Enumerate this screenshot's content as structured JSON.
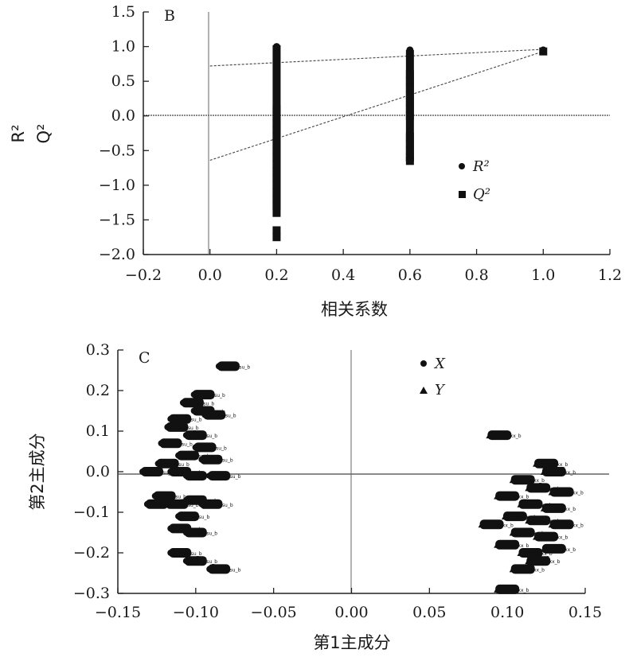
{
  "chart_data": [
    {
      "type": "scatter",
      "panel_label": "B",
      "xlabel": "相关系数",
      "ylabel_parts": [
        "R²",
        "Q²"
      ],
      "xlim": [
        -0.2,
        1.2
      ],
      "ylim": [
        -2.0,
        1.5
      ],
      "x_ticks": [
        "−0.2",
        "0.0",
        "0.2",
        "0.4",
        "0.6",
        "0.8",
        "1.0",
        "1.2"
      ],
      "y_ticks": [
        "1.5",
        "1.0",
        "0.5",
        "0.0",
        "−0.5",
        "−1.0",
        "−1.5",
        "−2.0"
      ],
      "legend_position": "right-middle",
      "series": [
        {
          "name": "R²",
          "marker": "circle",
          "points": [
            [
              0.2,
              1.0
            ],
            [
              0.2,
              0.9
            ],
            [
              0.2,
              0.8
            ],
            [
              0.2,
              0.7
            ],
            [
              0.2,
              0.6
            ],
            [
              0.2,
              0.5
            ],
            [
              0.2,
              0.4
            ],
            [
              0.2,
              0.3
            ],
            [
              0.2,
              0.2
            ],
            [
              0.6,
              0.95
            ],
            [
              0.6,
              0.9
            ],
            [
              0.6,
              0.85
            ],
            [
              0.6,
              0.8
            ],
            [
              0.6,
              0.75
            ],
            [
              0.6,
              0.7
            ],
            [
              1.0,
              0.95
            ]
          ]
        },
        {
          "name": "Q²",
          "marker": "square",
          "points": [
            [
              0.2,
              0.1
            ],
            [
              0.2,
              0.0
            ],
            [
              0.2,
              -0.1
            ],
            [
              0.2,
              -0.2
            ],
            [
              0.2,
              -0.3
            ],
            [
              0.2,
              -0.4
            ],
            [
              0.2,
              -0.5
            ],
            [
              0.2,
              -0.6
            ],
            [
              0.2,
              -0.7
            ],
            [
              0.2,
              -0.8
            ],
            [
              0.2,
              -0.9
            ],
            [
              0.2,
              -1.0
            ],
            [
              0.2,
              -1.1
            ],
            [
              0.2,
              -1.2
            ],
            [
              0.2,
              -1.3
            ],
            [
              0.2,
              -1.4
            ],
            [
              0.2,
              -1.65
            ],
            [
              0.2,
              -1.75
            ],
            [
              0.6,
              0.6
            ],
            [
              0.6,
              0.5
            ],
            [
              0.6,
              0.4
            ],
            [
              0.6,
              0.3
            ],
            [
              0.6,
              0.2
            ],
            [
              0.6,
              0.1
            ],
            [
              0.6,
              0.0
            ],
            [
              0.6,
              -0.3
            ],
            [
              0.6,
              -0.4
            ],
            [
              0.6,
              -0.5
            ],
            [
              0.6,
              -0.6
            ],
            [
              0.6,
              -0.65
            ],
            [
              1.0,
              0.93
            ]
          ]
        }
      ],
      "regression_lines": [
        {
          "series": "R²",
          "x": [
            0,
            1.0
          ],
          "y": [
            0.72,
            0.96
          ]
        },
        {
          "series": "Q²",
          "x": [
            0,
            1.0
          ],
          "y": [
            -0.64,
            0.93
          ]
        }
      ]
    },
    {
      "type": "scatter",
      "panel_label": "C",
      "xlabel": "第1主成分",
      "ylabel": "第2主成分",
      "xlim": [
        -0.15,
        0.15
      ],
      "ylim": [
        -0.3,
        0.3
      ],
      "x_ticks": [
        "−0.15",
        "−0.10",
        "−0.05",
        "0.00",
        "0.05",
        "0.10",
        "0.15"
      ],
      "y_ticks": [
        "0.3",
        "0.2",
        "0.1",
        "0.0",
        "−0.1",
        "−0.2",
        "−0.3"
      ],
      "legend_position": "top-right",
      "series": [
        {
          "name": "X",
          "marker": "circle",
          "label": "Ruusu_b",
          "points": [
            [
              -0.079,
              0.26
            ],
            [
              -0.095,
              0.19
            ],
            [
              -0.102,
              0.17
            ],
            [
              -0.095,
              0.15
            ],
            [
              -0.11,
              0.13
            ],
            [
              -0.088,
              0.14
            ],
            [
              -0.112,
              0.11
            ],
            [
              -0.1,
              0.09
            ],
            [
              -0.116,
              0.07
            ],
            [
              -0.094,
              0.06
            ],
            [
              -0.105,
              0.04
            ],
            [
              -0.09,
              0.03
            ],
            [
              -0.118,
              0.02
            ],
            [
              -0.128,
              0.0
            ],
            [
              -0.11,
              0.0
            ],
            [
              -0.1,
              -0.01
            ],
            [
              -0.085,
              -0.01
            ],
            [
              -0.12,
              -0.06
            ],
            [
              -0.112,
              -0.08
            ],
            [
              -0.1,
              -0.07
            ],
            [
              -0.09,
              -0.08
            ],
            [
              -0.125,
              -0.08
            ],
            [
              -0.105,
              -0.11
            ],
            [
              -0.11,
              -0.14
            ],
            [
              -0.1,
              -0.15
            ],
            [
              -0.11,
              -0.2
            ],
            [
              -0.1,
              -0.22
            ],
            [
              -0.085,
              -0.24
            ]
          ]
        },
        {
          "name": "Y",
          "marker": "triangle",
          "label": "Rxxxx_b",
          "points": [
            [
              0.095,
              0.09
            ],
            [
              0.125,
              0.02
            ],
            [
              0.13,
              0.0
            ],
            [
              0.11,
              -0.02
            ],
            [
              0.12,
              -0.04
            ],
            [
              0.135,
              -0.05
            ],
            [
              0.1,
              -0.06
            ],
            [
              0.115,
              -0.08
            ],
            [
              0.13,
              -0.09
            ],
            [
              0.105,
              -0.11
            ],
            [
              0.12,
              -0.12
            ],
            [
              0.09,
              -0.13
            ],
            [
              0.135,
              -0.13
            ],
            [
              0.11,
              -0.15
            ],
            [
              0.125,
              -0.16
            ],
            [
              0.1,
              -0.18
            ],
            [
              0.13,
              -0.19
            ],
            [
              0.115,
              -0.2
            ],
            [
              0.12,
              -0.22
            ],
            [
              0.11,
              -0.24
            ],
            [
              0.1,
              -0.29
            ]
          ]
        }
      ]
    }
  ]
}
